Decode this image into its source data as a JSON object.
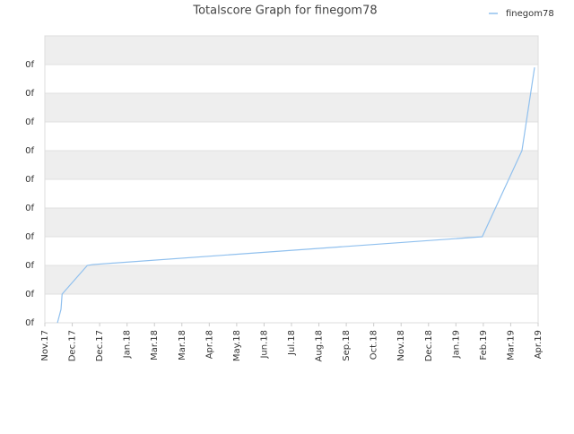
{
  "chart_data": {
    "type": "line",
    "title": "Totalscore Graph for finegom78",
    "x": [
      0.46,
      0.59,
      0.63,
      1.55,
      1.74,
      15.96,
      17.41,
      17.87
    ],
    "series": [
      {
        "name": "finegom78",
        "color": "#90c0ee",
        "values": [
          0,
          0.47,
          1,
          2,
          2.03,
          3,
          6,
          8.9
        ]
      }
    ],
    "xlim": [
      0,
      18
    ],
    "xticks": [
      {
        "value": 0,
        "label": "Nov.17"
      },
      {
        "value": 1,
        "label": "Dec.17"
      },
      {
        "value": 2,
        "label": "Dec.17"
      },
      {
        "value": 3,
        "label": "Jan.18"
      },
      {
        "value": 4,
        "label": "Mar.18"
      },
      {
        "value": 5,
        "label": "Mar.18"
      },
      {
        "value": 6,
        "label": "Apr.18"
      },
      {
        "value": 7,
        "label": "May.18"
      },
      {
        "value": 8,
        "label": "Jun.18"
      },
      {
        "value": 9,
        "label": "Jul.18"
      },
      {
        "value": 10,
        "label": "Aug.18"
      },
      {
        "value": 11,
        "label": "Sep.18"
      },
      {
        "value": 12,
        "label": "Oct.18"
      },
      {
        "value": 13,
        "label": "Nov.18"
      },
      {
        "value": 14,
        "label": "Dec.18"
      },
      {
        "value": 15,
        "label": "Jan.19"
      },
      {
        "value": 16,
        "label": "Feb.19"
      },
      {
        "value": 17,
        "label": "Mar.19"
      },
      {
        "value": 18,
        "label": "Apr.19"
      }
    ],
    "ylim": [
      0,
      10
    ],
    "yticks": [
      {
        "value": 0,
        "label": "0f"
      },
      {
        "value": 1,
        "label": "0f"
      },
      {
        "value": 2,
        "label": "0f"
      },
      {
        "value": 3,
        "label": "0f"
      },
      {
        "value": 4,
        "label": "0f"
      },
      {
        "value": 5,
        "label": "0f"
      },
      {
        "value": 6,
        "label": "0f"
      },
      {
        "value": 7,
        "label": "0f"
      },
      {
        "value": 8,
        "label": "0f"
      },
      {
        "value": 9,
        "label": "0f"
      }
    ],
    "grid": true,
    "legend": "top-right"
  }
}
